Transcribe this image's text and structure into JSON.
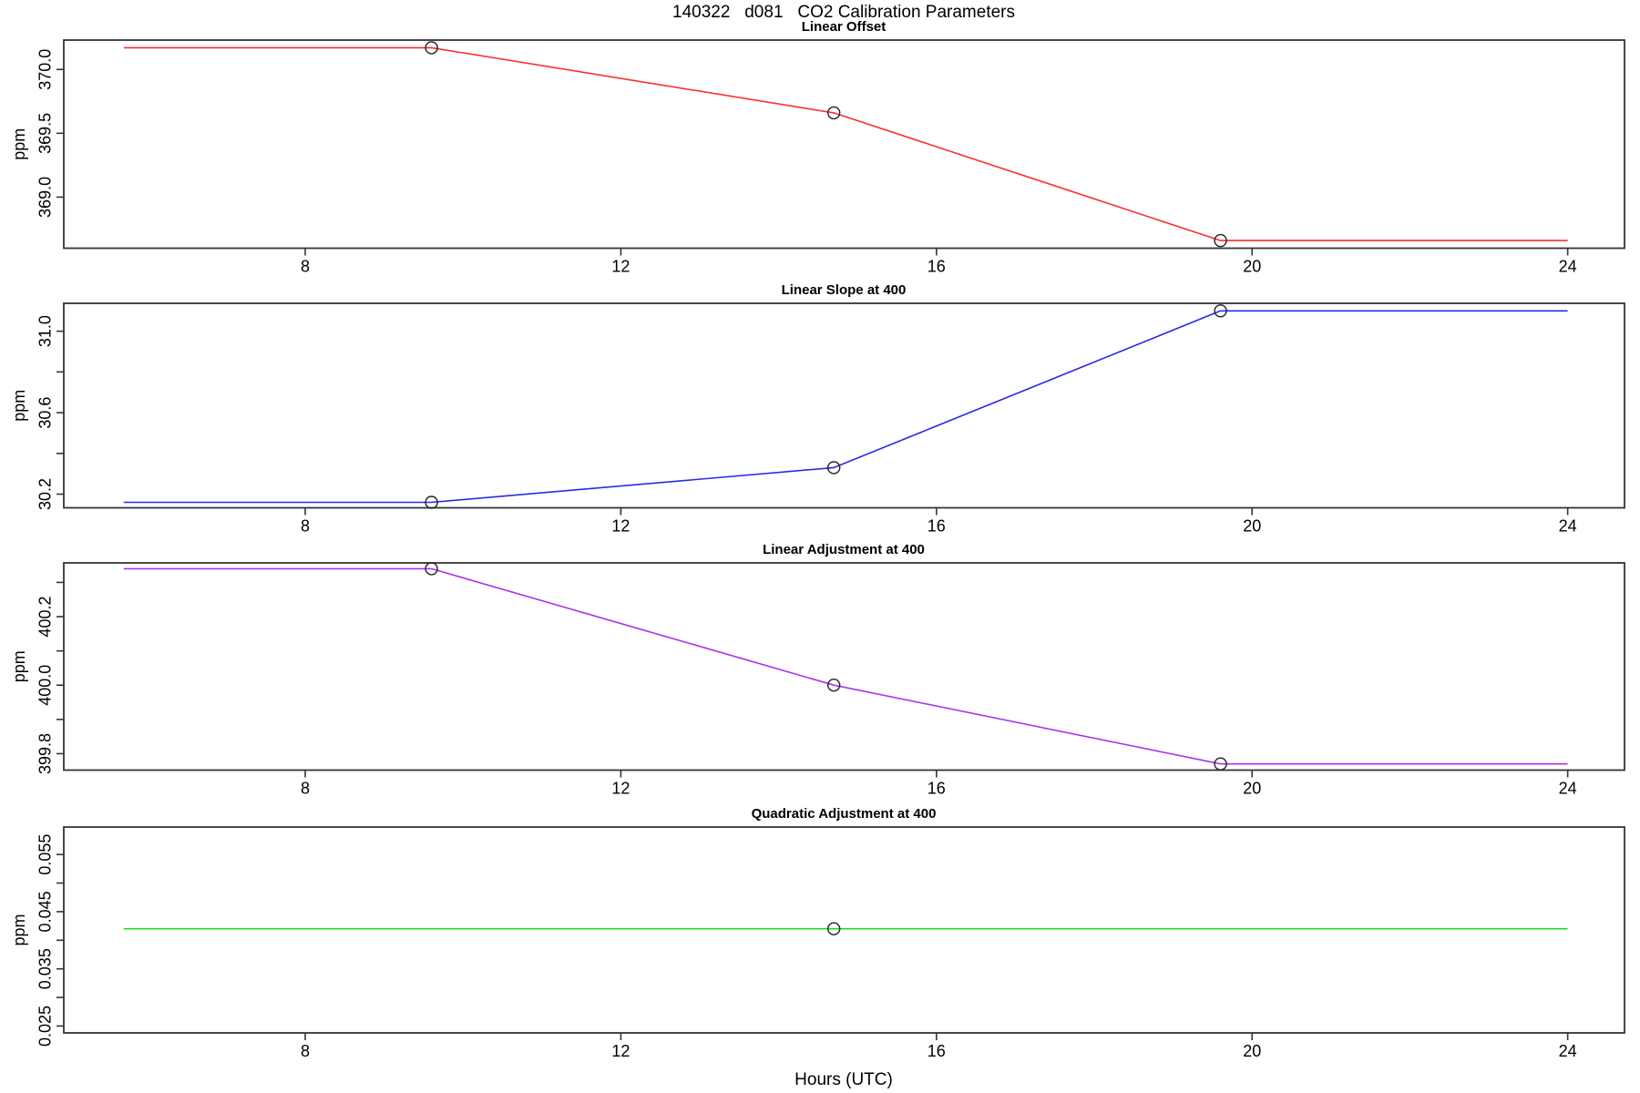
{
  "title": "140322   d081   CO2 Calibration Parameters",
  "chart_data": {
    "type": "line",
    "xlabel": "Hours (UTC)",
    "x_ticks": [
      8,
      12,
      16,
      20,
      24
    ],
    "xlim": [
      4.94,
      24.72
    ],
    "line_x_extent": [
      5.7,
      24.0
    ],
    "marker_style": "open-circle",
    "grid": false,
    "legend": "none",
    "panels": [
      {
        "title": "Linear Offset",
        "ylabel": "ppm",
        "color": "#fa2f2f",
        "ylim": [
          368.6,
          370.23
        ],
        "yticks": [
          {
            "v": 369.0,
            "label": "369.0"
          },
          {
            "v": 369.5,
            "label": "369.5"
          },
          {
            "v": 370.0,
            "label": "370.0"
          }
        ],
        "x": [
          9.6,
          14.7,
          19.6
        ],
        "values": [
          370.17,
          369.66,
          368.66
        ]
      },
      {
        "title": "Linear Slope at 400",
        "ylabel": "ppm",
        "color": "#2a2ae6",
        "ylim": [
          30.133,
          31.137
        ],
        "yticks": [
          {
            "v": 30.2,
            "label": "30.2"
          },
          {
            "v": 30.4
          },
          {
            "v": 30.6,
            "label": "30.6"
          },
          {
            "v": 30.8
          },
          {
            "v": 31.0,
            "label": "31.0"
          }
        ],
        "x": [
          9.6,
          14.7,
          19.6
        ],
        "values": [
          30.16,
          30.33,
          31.1
        ]
      },
      {
        "title": "Linear Adjustment at 400",
        "ylabel": "ppm",
        "color": "#a835ec",
        "ylim": [
          399.752,
          400.357
        ],
        "yticks": [
          {
            "v": 399.8,
            "label": "399.8"
          },
          {
            "v": 399.9
          },
          {
            "v": 400.0,
            "label": "400.0"
          },
          {
            "v": 400.1
          },
          {
            "v": 400.2,
            "label": "400.2"
          },
          {
            "v": 400.3
          }
        ],
        "x": [
          9.6,
          14.7,
          19.6
        ],
        "values": [
          400.34,
          400.0,
          399.77
        ]
      },
      {
        "title": "Quadratic Adjustment at 400",
        "ylabel": "ppm",
        "color": "#1ddc1d",
        "ylim": [
          0.0238,
          0.0598
        ],
        "yticks": [
          {
            "v": 0.025,
            "label": "0.025"
          },
          {
            "v": 0.03
          },
          {
            "v": 0.035,
            "label": "0.035"
          },
          {
            "v": 0.04
          },
          {
            "v": 0.045,
            "label": "0.045"
          },
          {
            "v": 0.05
          },
          {
            "v": 0.055,
            "label": "0.055"
          }
        ],
        "x": [
          14.7
        ],
        "values": [
          0.042
        ]
      }
    ]
  }
}
